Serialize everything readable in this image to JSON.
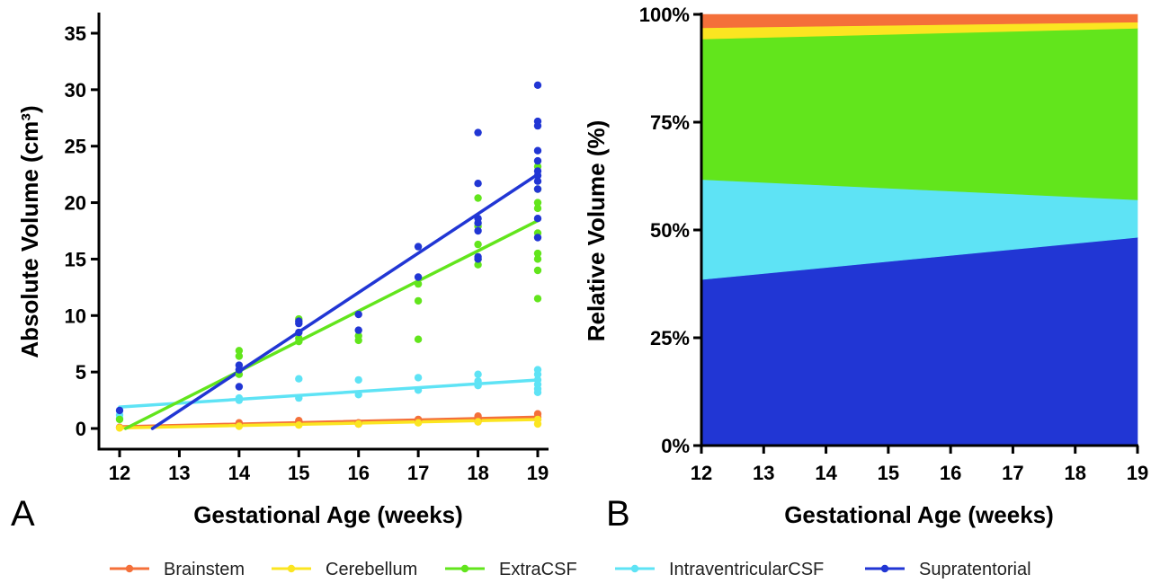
{
  "panels": {
    "a_label": "A",
    "b_label": "B"
  },
  "legend": {
    "items": [
      {
        "name": "Brainstem",
        "color": "#f4703a"
      },
      {
        "name": "Cerebellum",
        "color": "#fbe521"
      },
      {
        "name": "ExtraCSF",
        "color": "#62e51c"
      },
      {
        "name": "IntraventricularCSF",
        "color": "#5ee3f5"
      },
      {
        "name": "Supratentorial",
        "color": "#2136d4"
      }
    ]
  },
  "chart_data": [
    {
      "type": "scatter",
      "panel": "A",
      "xlabel": "Gestational Age (weeks)",
      "ylabel": "Absolute Volume (cm³)",
      "xlim": [
        12,
        19
      ],
      "ylim": [
        0,
        35
      ],
      "xticks": [
        12,
        13,
        14,
        15,
        16,
        17,
        18,
        19
      ],
      "yticks": [
        0,
        5,
        10,
        15,
        20,
        25,
        30,
        35
      ],
      "series": [
        {
          "name": "Brainstem",
          "color": "#f4703a",
          "points": [
            [
              12,
              0.1
            ],
            [
              14,
              0.5
            ],
            [
              14,
              0.4
            ],
            [
              15,
              0.6
            ],
            [
              15,
              0.7
            ],
            [
              16,
              0.5
            ],
            [
              16,
              0.4
            ],
            [
              17,
              0.8
            ],
            [
              17,
              0.7
            ],
            [
              18,
              1.1
            ],
            [
              18,
              0.9
            ],
            [
              18,
              0.6
            ],
            [
              19,
              1.3
            ],
            [
              19,
              1.0
            ],
            [
              19,
              0.8
            ]
          ],
          "fit": [
            [
              12,
              0.15
            ],
            [
              19,
              1.0
            ]
          ]
        },
        {
          "name": "Cerebellum",
          "color": "#fbe521",
          "points": [
            [
              12,
              0.05
            ],
            [
              14,
              0.2
            ],
            [
              15,
              0.3
            ],
            [
              16,
              0.4
            ],
            [
              17,
              0.5
            ],
            [
              18,
              0.6
            ],
            [
              19,
              0.8
            ],
            [
              19,
              0.4
            ]
          ],
          "fit": [
            [
              12,
              0.05
            ],
            [
              19,
              0.8
            ]
          ]
        },
        {
          "name": "ExtraCSF",
          "color": "#62e51c",
          "points": [
            [
              12,
              0.8
            ],
            [
              14,
              6.9
            ],
            [
              14,
              6.4
            ],
            [
              14,
              4.8
            ],
            [
              15,
              9.7
            ],
            [
              15,
              8.0
            ],
            [
              15,
              7.7
            ],
            [
              16,
              8.2
            ],
            [
              16,
              7.8
            ],
            [
              17,
              12.8
            ],
            [
              17,
              11.3
            ],
            [
              17,
              7.9
            ],
            [
              18,
              20.4
            ],
            [
              18,
              17.9
            ],
            [
              18,
              16.3
            ],
            [
              18,
              15.0
            ],
            [
              18,
              14.5
            ],
            [
              19,
              23.2
            ],
            [
              19,
              21.2
            ],
            [
              19,
              20.0
            ],
            [
              19,
              19.5
            ],
            [
              19,
              17.3
            ],
            [
              19,
              15.5
            ],
            [
              19,
              15.0
            ],
            [
              19,
              14.0
            ],
            [
              19,
              11.5
            ]
          ],
          "fit": [
            [
              12.1,
              0.0
            ],
            [
              19,
              18.4
            ]
          ]
        },
        {
          "name": "IntraventricularCSF",
          "color": "#5ee3f5",
          "points": [
            [
              12,
              0.9
            ],
            [
              12,
              1.2
            ],
            [
              14,
              2.5
            ],
            [
              14,
              2.7
            ],
            [
              15,
              4.4
            ],
            [
              15,
              2.7
            ],
            [
              16,
              4.3
            ],
            [
              16,
              3.0
            ],
            [
              17,
              4.5
            ],
            [
              17,
              3.4
            ],
            [
              18,
              4.8
            ],
            [
              18,
              4.2
            ],
            [
              18,
              3.8
            ],
            [
              19,
              5.2
            ],
            [
              19,
              4.8
            ],
            [
              19,
              4.3
            ],
            [
              19,
              3.9
            ],
            [
              19,
              3.5
            ],
            [
              19,
              3.2
            ]
          ],
          "fit": [
            [
              12,
              1.9
            ],
            [
              19,
              4.3
            ]
          ]
        },
        {
          "name": "Supratentorial",
          "color": "#2136d4",
          "points": [
            [
              12,
              1.6
            ],
            [
              14,
              5.6
            ],
            [
              14,
              5.2
            ],
            [
              14,
              3.7
            ],
            [
              15,
              9.5
            ],
            [
              15,
              9.3
            ],
            [
              15,
              8.5
            ],
            [
              16,
              10.1
            ],
            [
              16,
              8.7
            ],
            [
              17,
              16.1
            ],
            [
              17,
              13.4
            ],
            [
              18,
              26.2
            ],
            [
              18,
              21.7
            ],
            [
              18,
              18.6
            ],
            [
              18,
              18.2
            ],
            [
              18,
              17.5
            ],
            [
              18,
              15.2
            ],
            [
              18,
              15.0
            ],
            [
              19,
              30.4
            ],
            [
              19,
              27.2
            ],
            [
              19,
              26.8
            ],
            [
              19,
              24.6
            ],
            [
              19,
              23.7
            ],
            [
              19,
              22.8
            ],
            [
              19,
              22.4
            ],
            [
              19,
              21.9
            ],
            [
              19,
              21.2
            ],
            [
              19,
              18.6
            ],
            [
              19,
              16.9
            ]
          ],
          "fit": [
            [
              12.55,
              0.0
            ],
            [
              19,
              22.5
            ]
          ]
        }
      ]
    },
    {
      "type": "area",
      "stacked": true,
      "panel": "B",
      "xlabel": "Gestational Age (weeks)",
      "ylabel": "Relative Volume (%)",
      "xlim": [
        12,
        19
      ],
      "ylim": [
        0,
        100
      ],
      "xticks": [
        12,
        13,
        14,
        15,
        16,
        17,
        18,
        19
      ],
      "yticks": [
        "0%",
        "25%",
        "50%",
        "75%",
        "100%"
      ],
      "x": [
        12,
        19
      ],
      "series": [
        {
          "name": "Supratentorial",
          "color": "#2136d4",
          "values": [
            38.5,
            48.3
          ]
        },
        {
          "name": "IntraventricularCSF",
          "color": "#5ee3f5",
          "values": [
            23.2,
            8.7
          ]
        },
        {
          "name": "ExtraCSF",
          "color": "#62e51c",
          "values": [
            32.6,
            39.8
          ]
        },
        {
          "name": "Cerebellum",
          "color": "#fbe521",
          "values": [
            2.6,
            1.4
          ]
        },
        {
          "name": "Brainstem",
          "color": "#f4703a",
          "values": [
            3.1,
            1.8
          ]
        }
      ]
    }
  ]
}
